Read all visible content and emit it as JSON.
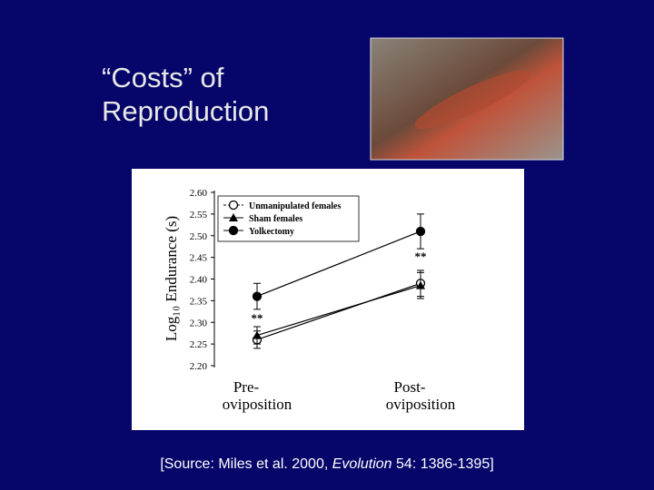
{
  "slide": {
    "title": "“Costs” of Reproduction",
    "source": [
      "[Source: Miles et al.  2000, ",
      "Evolution",
      " 54: 1386-1395]"
    ]
  },
  "chart_data": {
    "type": "line",
    "ylabel": "Log₁₀ Endurance (s)",
    "categories": [
      "Pre-oviposition",
      "Post-oviposition"
    ],
    "series": [
      {
        "name": "Unmanipulated females",
        "color": "#000000",
        "marker": "open-circle",
        "values": [
          2.26,
          2.39
        ],
        "errors": [
          0.02,
          0.03
        ]
      },
      {
        "name": "Sham females",
        "color": "#000000",
        "marker": "triangle",
        "values": [
          2.27,
          2.385
        ],
        "errors": [
          0.02,
          0.03
        ]
      },
      {
        "name": "Yolkectomy",
        "color": "#000000",
        "marker": "circle",
        "values": [
          2.36,
          2.51
        ],
        "errors": [
          0.03,
          0.04
        ]
      }
    ],
    "annotations": [
      "**",
      "**"
    ],
    "ylim": [
      2.2,
      2.6
    ],
    "yticks": [
      {
        "value": 2.2,
        "label": "2.20"
      },
      2.25,
      {
        "value": 2.3,
        "label": "2.30"
      },
      2.35,
      {
        "value": 2.4,
        "label": "2.40"
      },
      2.45,
      {
        "value": 2.5,
        "label": "2.50"
      },
      2.55,
      {
        "value": 2.6,
        "label": "2.60"
      }
    ],
    "legend": "upper-left"
  }
}
